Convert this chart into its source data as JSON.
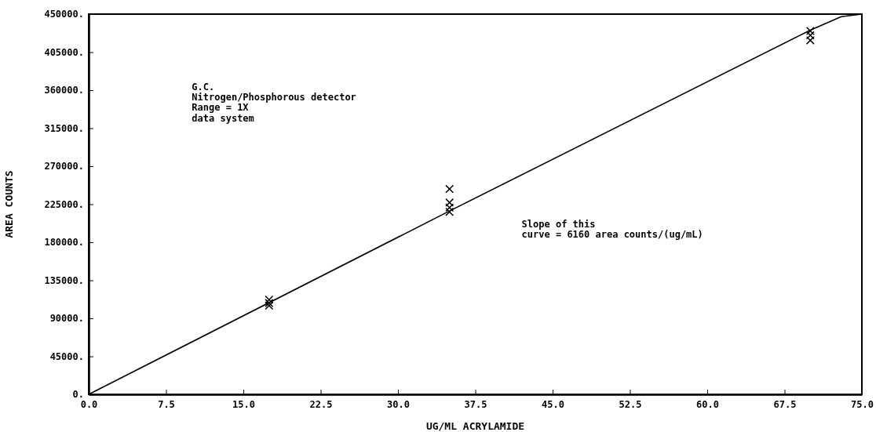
{
  "chart_data": {
    "type": "scatter",
    "xlabel": "UG/ML ACRYLAMIDE",
    "ylabel": "AREA COUNTS",
    "xlim": [
      0,
      75
    ],
    "ylim": [
      0,
      450000
    ],
    "xticks": [
      {
        "value": 0,
        "label": "0.0"
      },
      7.5,
      {
        "value": 15,
        "label": "15.0"
      },
      22.5,
      {
        "value": 30,
        "label": "30.0"
      },
      37.5,
      {
        "value": 45,
        "label": "45.0"
      },
      52.5,
      {
        "value": 60,
        "label": "60.0"
      },
      67.5,
      {
        "value": 75,
        "label": "75.0"
      }
    ],
    "yticks": [
      {
        "value": 0,
        "label": "0."
      },
      {
        "value": 45000,
        "label": "45000."
      },
      {
        "value": 90000,
        "label": "90000."
      },
      {
        "value": 135000,
        "label": "135000."
      },
      {
        "value": 180000,
        "label": "180000."
      },
      {
        "value": 225000,
        "label": "225000."
      },
      {
        "value": 270000,
        "label": "270000."
      },
      {
        "value": 315000,
        "label": "315000."
      },
      {
        "value": 360000,
        "label": "360000."
      },
      {
        "value": 405000,
        "label": "405000."
      },
      {
        "value": 450000,
        "label": "450000."
      }
    ],
    "grid": false,
    "series": [
      {
        "type": "line",
        "color": "#000000",
        "x": [
          0,
          35,
          70,
          73,
          75
        ],
        "values": [
          0,
          217000,
          431000,
          447000,
          450000
        ]
      },
      {
        "marker": "cross",
        "color": "#000000",
        "x": [
          17.5,
          17.5,
          17.5,
          35,
          35,
          35,
          35,
          70,
          70,
          70
        ],
        "values": [
          112000,
          108000,
          105000,
          243000,
          227000,
          221000,
          216000,
          430000,
          425000,
          419000
        ]
      }
    ],
    "annotations": [
      "G.C.\nNitrogen/Phosphorous detector\nRange = 1X\ndata system",
      "Slope of this\ncurve = 6160 area counts/(ug/mL)"
    ]
  }
}
